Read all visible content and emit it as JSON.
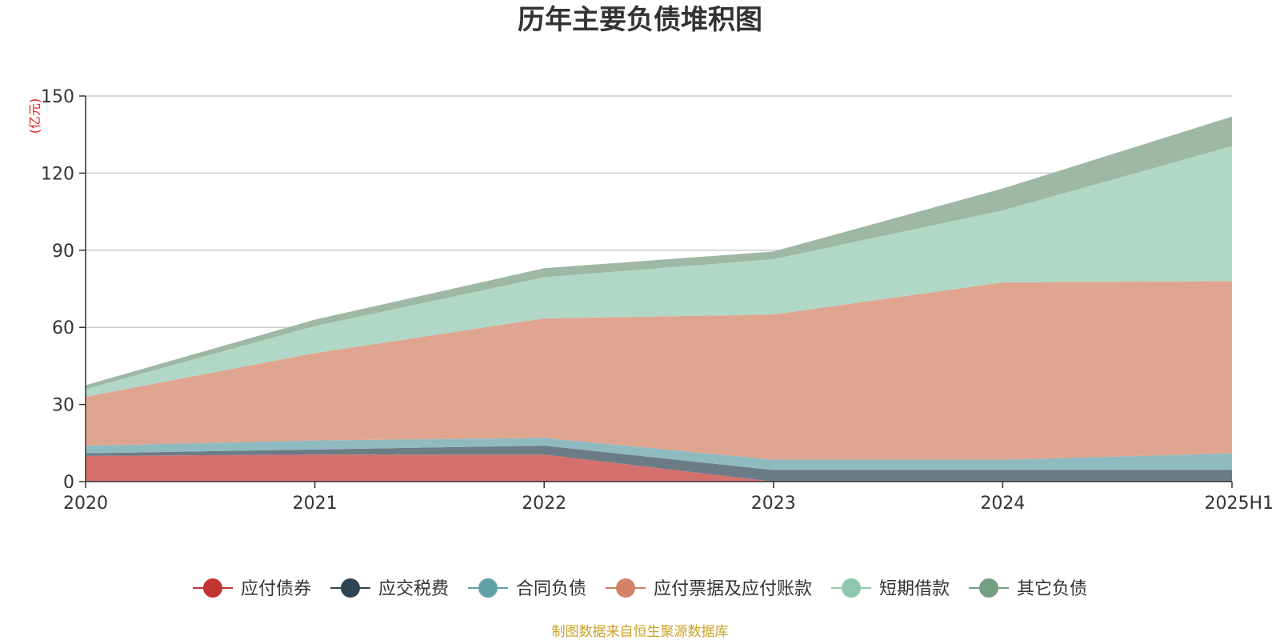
{
  "chart_data": {
    "type": "area",
    "stacked": true,
    "title": "历年主要负债堆积图",
    "ylabel": "(亿元)",
    "xlabel": "",
    "categories": [
      "2020",
      "2021",
      "2022",
      "2023",
      "2024",
      "2025H1"
    ],
    "ylim": [
      0,
      150
    ],
    "yticks": [
      0,
      30,
      60,
      90,
      120,
      150
    ],
    "grid": true,
    "legend_position": "bottom",
    "series": [
      {
        "name": "应付债券",
        "color": "#c23531",
        "fill": "#d4706d",
        "values": [
          10.0,
          10.5,
          10.5,
          0.0,
          0.0,
          0.0
        ]
      },
      {
        "name": "应交税费",
        "color": "#2f4554",
        "fill": "#6c7c86",
        "values": [
          1.0,
          2.0,
          3.5,
          4.5,
          4.5,
          4.5
        ]
      },
      {
        "name": "合同负债",
        "color": "#61a0a8",
        "fill": "#8fbbc0",
        "values": [
          3.0,
          3.5,
          3.0,
          4.0,
          4.0,
          6.5
        ]
      },
      {
        "name": "应付票据及应付账款",
        "color": "#d48265",
        "fill": "#dfa591",
        "values": [
          19.0,
          34.0,
          46.5,
          56.5,
          69.0,
          67.0
        ]
      },
      {
        "name": "短期借款",
        "color": "#91c7ae",
        "fill": "#b1d8c6",
        "values": [
          3.0,
          10.5,
          16.0,
          21.5,
          28.0,
          52.5
        ]
      },
      {
        "name": "其它负债",
        "color": "#749f83",
        "fill": "#9fb7a5",
        "values": [
          1.5,
          2.5,
          3.5,
          3.0,
          8.5,
          11.5
        ]
      }
    ]
  },
  "source_note": "制图数据来自恒生聚源数据库"
}
